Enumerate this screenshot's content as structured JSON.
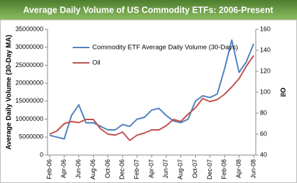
{
  "chart_data": {
    "type": "line",
    "title": "Average Daily Volume of US Commodity ETFs: 2006-Present",
    "y_label": "Average Daily Volume (30-Day MA)",
    "y2_label": "Oil",
    "categories": [
      "Feb-06",
      null,
      "Apr-06",
      null,
      "Jun-06",
      null,
      "Aug-06",
      null,
      "Oct-06",
      null,
      "Dec-06",
      null,
      "Feb-07",
      null,
      "Apr-07",
      null,
      "Jun-07",
      null,
      "Aug-07",
      null,
      "Oct-07",
      null,
      "Dec-07",
      null,
      "Feb-08",
      null,
      "Apr-08",
      null,
      "Jun-08"
    ],
    "series": [
      {
        "name": "Commodity ETF Average Daily Volume (30-Days)",
        "color": "#4f81bd",
        "values": [
          5500000,
          5000000,
          4500000,
          11000000,
          14000000,
          9000000,
          9000000,
          8000000,
          7000000,
          7000000,
          8500000,
          8000000,
          10000000,
          10500000,
          12500000,
          13000000,
          11000000,
          9500000,
          9000000,
          10000000,
          15000000,
          16500000,
          16000000,
          17000000,
          24000000,
          32000000,
          23000000,
          26000000,
          31000000
        ]
      },
      {
        "name": "Oil",
        "color": "#c0504d",
        "axis": "y2",
        "values": [
          60,
          63,
          70,
          72,
          71,
          74,
          74,
          65,
          60,
          59,
          62,
          54,
          59,
          61,
          64,
          64,
          68,
          74,
          72,
          79,
          85,
          94,
          91,
          93,
          98,
          105,
          113,
          125,
          135
        ]
      }
    ],
    "ylim": [
      0,
      35000000
    ],
    "yticks": [
      0,
      5000000,
      10000000,
      15000000,
      20000000,
      25000000,
      30000000,
      35000000
    ],
    "y2lim": [
      40,
      160
    ],
    "y2ticks": [
      40,
      60,
      80,
      100,
      120,
      140,
      160
    ],
    "legend": "upper left"
  }
}
